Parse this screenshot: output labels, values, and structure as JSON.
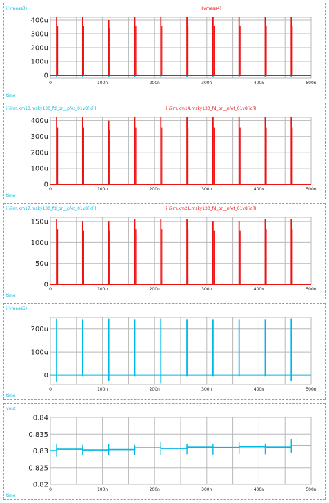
{
  "colors": {
    "red": "#ee1111",
    "cyan": "#00b8e6",
    "grid": "#b8b8b8",
    "frame": "#9a9a9a"
  },
  "chart_data": [
    {
      "type": "line",
      "title_left": "i(vmeas3)",
      "title_right": "i(vmeas4)",
      "xlabel": "time",
      "x_ticks": [
        "0",
        "100n",
        "200n",
        "300n",
        "400n",
        "500n"
      ],
      "y_ticks": [
        "400u",
        "300u",
        "200u",
        "100u",
        "0"
      ],
      "xlim": [
        0,
        500
      ],
      "ylim": [
        -20,
        420
      ],
      "x_unit": "ns",
      "y_unit": "uA",
      "series": [
        {
          "name": "i(vmeas3)",
          "color": "#00b8e6",
          "baseline": 0,
          "pulses": [
            {
              "t": 12,
              "v": -15
            },
            {
              "t": 62,
              "v": -15
            },
            {
              "t": 112,
              "v": -15
            },
            {
              "t": 162,
              "v": -15
            },
            {
              "t": 212,
              "v": -15
            },
            {
              "t": 262,
              "v": -15
            },
            {
              "t": 312,
              "v": -15
            },
            {
              "t": 362,
              "v": -15
            },
            {
              "t": 412,
              "v": -15
            },
            {
              "t": 462,
              "v": -15
            }
          ]
        },
        {
          "name": "i(vmeas4)",
          "color": "#ee1111",
          "baseline": 0,
          "pulses": [
            {
              "t": 12,
              "v": 420
            },
            {
              "t": 62,
              "v": 420
            },
            {
              "t": 112,
              "v": 400
            },
            {
              "t": 162,
              "v": 420
            },
            {
              "t": 212,
              "v": 420
            },
            {
              "t": 262,
              "v": 420
            },
            {
              "t": 312,
              "v": 420
            },
            {
              "t": 362,
              "v": 420
            },
            {
              "t": 412,
              "v": 420
            },
            {
              "t": 462,
              "v": 420
            }
          ]
        }
      ]
    },
    {
      "type": "line",
      "title_left": "i(@m.xm13.msky130_fd_pr__pfet_01v8[id])",
      "title_right": "i(@m.xm14.msky130_fd_pr__nfet_01v8[id])",
      "xlabel": "time",
      "x_ticks": [
        "0",
        "100n",
        "200n",
        "300n",
        "400n",
        "500n"
      ],
      "y_ticks": [
        "400u",
        "300u",
        "200u",
        "100u",
        "0"
      ],
      "xlim": [
        0,
        500
      ],
      "ylim": [
        0,
        420
      ],
      "x_unit": "ns",
      "y_unit": "uA",
      "series": [
        {
          "name": "i(@m.xm13.msky130_fd_pr__pfet_01v8[id])",
          "color": "#00b8e6",
          "baseline": 0,
          "pulses": []
        },
        {
          "name": "i(@m.xm14.msky130_fd_pr__nfet_01v8[id])",
          "color": "#ee1111",
          "baseline": 0,
          "pulses": [
            {
              "t": 12,
              "v": 420
            },
            {
              "t": 62,
              "v": 420
            },
            {
              "t": 112,
              "v": 400
            },
            {
              "t": 162,
              "v": 420
            },
            {
              "t": 212,
              "v": 420
            },
            {
              "t": 262,
              "v": 420
            },
            {
              "t": 312,
              "v": 420
            },
            {
              "t": 362,
              "v": 420
            },
            {
              "t": 412,
              "v": 420
            },
            {
              "t": 462,
              "v": 420
            }
          ]
        }
      ]
    },
    {
      "type": "line",
      "title_left": "i(@m.xm17.msky130_fd_pr__pfet_01v8[id])",
      "title_right": "i(@m.xm21.msky130_fd_pr__nfet_01v8[id])",
      "xlabel": "time",
      "x_ticks": [
        "0",
        "100n",
        "200n",
        "300n",
        "400n",
        "500n"
      ],
      "y_ticks": [
        "150u",
        "100u",
        "50u",
        "0"
      ],
      "xlim": [
        0,
        500
      ],
      "ylim": [
        0,
        160
      ],
      "x_unit": "ns",
      "y_unit": "uA",
      "series": [
        {
          "name": "i(@m.xm17.msky130_fd_pr__pfet_01v8[id])",
          "color": "#00b8e6",
          "baseline": 0,
          "pulses": []
        },
        {
          "name": "i(@m.xm21.msky130_fd_pr__nfet_01v8[id])",
          "color": "#ee1111",
          "baseline": 0,
          "pulses": [
            {
              "t": 12,
              "v": 155
            },
            {
              "t": 62,
              "v": 150
            },
            {
              "t": 112,
              "v": 150
            },
            {
              "t": 162,
              "v": 155
            },
            {
              "t": 212,
              "v": 155
            },
            {
              "t": 262,
              "v": 155
            },
            {
              "t": 312,
              "v": 150
            },
            {
              "t": 362,
              "v": 150
            },
            {
              "t": 412,
              "v": 155
            },
            {
              "t": 462,
              "v": 155
            }
          ]
        }
      ]
    },
    {
      "type": "line",
      "title_left": "i(vmeas5)",
      "title_right": "",
      "xlabel": "time",
      "x_ticks": [
        "0",
        "100n",
        "200n",
        "300n",
        "400n",
        "500n"
      ],
      "y_ticks": [
        "200u",
        "100u",
        "0"
      ],
      "xlim": [
        0,
        500
      ],
      "ylim": [
        -40,
        250
      ],
      "x_unit": "ns",
      "y_unit": "uA",
      "series": [
        {
          "name": "i(vmeas5)",
          "color": "#00b8e6",
          "baseline": 0,
          "pulses": [
            {
              "t": 12,
              "v": 245,
              "vmin": -30
            },
            {
              "t": 62,
              "v": 240,
              "vmin": -5
            },
            {
              "t": 112,
              "v": 245,
              "vmin": -25
            },
            {
              "t": 162,
              "v": 240,
              "vmin": -5
            },
            {
              "t": 212,
              "v": 245,
              "vmin": -35
            },
            {
              "t": 262,
              "v": 240,
              "vmin": -5
            },
            {
              "t": 312,
              "v": 240,
              "vmin": -5
            },
            {
              "t": 362,
              "v": 240,
              "vmin": -5
            },
            {
              "t": 412,
              "v": 240,
              "vmin": -5
            },
            {
              "t": 462,
              "v": 245,
              "vmin": -25
            }
          ]
        }
      ]
    },
    {
      "type": "line",
      "title_left": "vout",
      "title_right": "",
      "xlabel": "time",
      "x_ticks": [
        "0",
        "100n",
        "200n",
        "300n",
        "400n",
        "500n"
      ],
      "y_ticks": [
        "0.84",
        "0.835",
        "0.83",
        "0.825",
        "0.82"
      ],
      "xlim": [
        0,
        500
      ],
      "ylim": [
        0.82,
        0.84
      ],
      "x_unit": "ns",
      "y_unit": "V",
      "series": [
        {
          "name": "vout",
          "color": "#00b8e6",
          "levels": [
            {
              "t0": 0,
              "t1": 12,
              "v": 0.8301
            },
            {
              "t0": 12,
              "t1": 62,
              "v": 0.8305
            },
            {
              "t0": 62,
              "t1": 112,
              "v": 0.8303
            },
            {
              "t0": 112,
              "t1": 162,
              "v": 0.8304
            },
            {
              "t0": 162,
              "t1": 212,
              "v": 0.8309
            },
            {
              "t0": 212,
              "t1": 262,
              "v": 0.8307
            },
            {
              "t0": 262,
              "t1": 312,
              "v": 0.8311
            },
            {
              "t0": 312,
              "t1": 362,
              "v": 0.831
            },
            {
              "t0": 362,
              "t1": 412,
              "v": 0.8312
            },
            {
              "t0": 412,
              "t1": 462,
              "v": 0.8311
            },
            {
              "t0": 462,
              "t1": 500,
              "v": 0.8315
            }
          ],
          "spikes": [
            {
              "t": 12,
              "hi": 0.8322,
              "lo": 0.8283
            },
            {
              "t": 62,
              "hi": 0.8318,
              "lo": 0.8287
            },
            {
              "t": 112,
              "hi": 0.832,
              "lo": 0.8286
            },
            {
              "t": 162,
              "hi": 0.8318,
              "lo": 0.8288
            },
            {
              "t": 212,
              "hi": 0.8328,
              "lo": 0.8287
            },
            {
              "t": 262,
              "hi": 0.8322,
              "lo": 0.829
            },
            {
              "t": 312,
              "hi": 0.8322,
              "lo": 0.8289
            },
            {
              "t": 362,
              "hi": 0.8326,
              "lo": 0.8291
            },
            {
              "t": 412,
              "hi": 0.8322,
              "lo": 0.829
            },
            {
              "t": 462,
              "hi": 0.8336,
              "lo": 0.8295
            }
          ]
        }
      ]
    }
  ]
}
